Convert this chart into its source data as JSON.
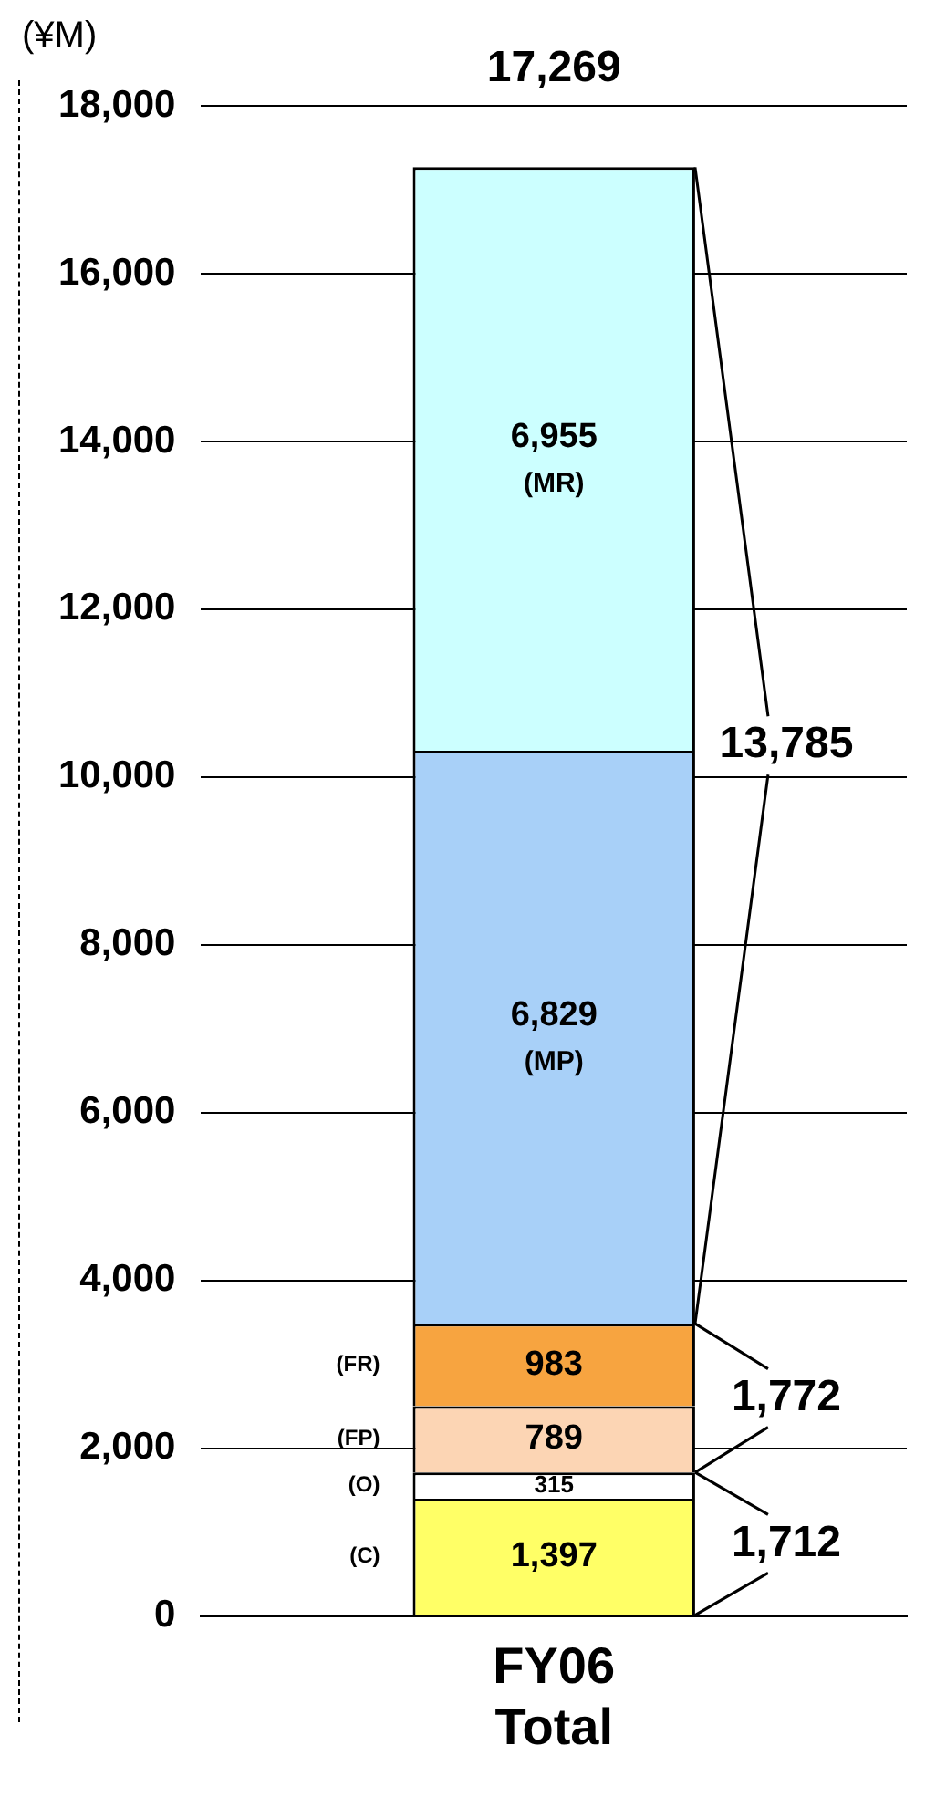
{
  "chart_data": {
    "type": "bar",
    "stacked": true,
    "ylabel": "(¥M)",
    "categories": [
      "FY06 Total"
    ],
    "series": [
      {
        "name": "(C)",
        "color": "#ffff66",
        "values": [
          1397
        ],
        "value_labels": [
          "1,397"
        ]
      },
      {
        "name": "(O)",
        "color": "#ffffff",
        "values": [
          315
        ],
        "value_labels": [
          "315"
        ]
      },
      {
        "name": "(FP)",
        "color": "#fcd5b4",
        "values": [
          789
        ],
        "value_labels": [
          "789"
        ]
      },
      {
        "name": "(FR)",
        "color": "#f7a440",
        "values": [
          983
        ],
        "value_labels": [
          "983"
        ]
      },
      {
        "name": "(MP)",
        "color": "#a8d0f8",
        "values": [
          6829
        ],
        "value_labels": [
          "6,829"
        ]
      },
      {
        "name": "(MR)",
        "color": "#ccffff",
        "values": [
          6955
        ],
        "value_labels": [
          "6,955"
        ]
      }
    ],
    "totals": [
      "17,269"
    ],
    "annotations": [
      "1,712",
      "1,772",
      "13,785"
    ],
    "ylim": [
      0,
      18000
    ],
    "yticks": [
      0,
      {
        "value": 2000,
        "label": "2,000"
      },
      {
        "value": 4000,
        "label": "4,000"
      },
      {
        "value": 6000,
        "label": "6,000"
      },
      {
        "value": 8000,
        "label": "8,000"
      },
      {
        "value": 10000,
        "label": "10,000"
      },
      {
        "value": 12000,
        "label": "12,000"
      },
      {
        "value": 14000,
        "label": "14,000"
      },
      {
        "value": 16000,
        "label": "16,000"
      },
      {
        "value": 18000,
        "label": "18,000"
      }
    ],
    "grid": "y",
    "legend": false
  }
}
